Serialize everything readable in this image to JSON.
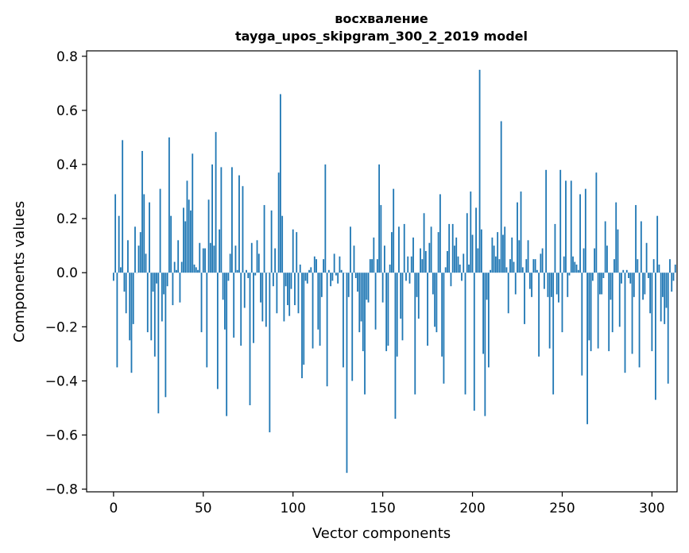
{
  "chart_data": {
    "type": "bar",
    "title_line1": "восхваление",
    "title_line2": "tayga_upos_skipgram_300_2_2019 model",
    "xlabel": "Vector components",
    "ylabel": "Components values",
    "xlim": [
      -15,
      314
    ],
    "ylim": [
      -0.81,
      0.82
    ],
    "xticks": [
      0,
      50,
      100,
      150,
      200,
      250,
      300
    ],
    "xtick_labels": [
      "0",
      "50",
      "100",
      "150",
      "200",
      "250",
      "300"
    ],
    "yticks": [
      -0.8,
      -0.6,
      -0.4,
      -0.2,
      0.0,
      0.2,
      0.4,
      0.6,
      0.8
    ],
    "ytick_labels": [
      "−0.8",
      "−0.6",
      "−0.4",
      "−0.2",
      "0.0",
      "0.2",
      "0.4",
      "0.6",
      "0.8"
    ],
    "color": "#1f77b4",
    "values": [
      -0.03,
      0.29,
      -0.35,
      0.21,
      0.02,
      0.49,
      -0.07,
      -0.15,
      0.12,
      -0.25,
      -0.37,
      -0.19,
      0.17,
      0.0,
      0.1,
      0.15,
      0.45,
      0.29,
      0.07,
      -0.22,
      0.26,
      -0.25,
      -0.07,
      -0.31,
      -0.04,
      -0.52,
      0.31,
      -0.18,
      -0.08,
      -0.46,
      -0.05,
      0.5,
      0.21,
      -0.12,
      0.04,
      0.01,
      0.12,
      -0.11,
      0.04,
      0.24,
      0.19,
      0.34,
      0.27,
      0.23,
      0.44,
      0.03,
      0.02,
      0.01,
      0.11,
      -0.22,
      0.09,
      0.09,
      -0.35,
      0.27,
      0.11,
      0.4,
      0.1,
      0.52,
      -0.43,
      0.16,
      0.39,
      -0.1,
      -0.21,
      -0.53,
      -0.03,
      0.07,
      0.39,
      -0.24,
      0.1,
      0.01,
      0.36,
      -0.27,
      0.32,
      -0.13,
      0.01,
      -0.02,
      -0.49,
      0.11,
      -0.26,
      -0.01,
      0.12,
      0.07,
      -0.11,
      -0.18,
      0.25,
      -0.2,
      0.0,
      -0.59,
      0.23,
      -0.05,
      0.09,
      -0.15,
      0.37,
      0.66,
      0.21,
      -0.18,
      -0.05,
      -0.12,
      -0.16,
      -0.06,
      0.16,
      -0.12,
      0.15,
      -0.15,
      0.03,
      -0.39,
      -0.34,
      -0.03,
      -0.04,
      0.01,
      0.02,
      -0.28,
      0.06,
      0.05,
      -0.21,
      -0.27,
      -0.09,
      0.05,
      0.4,
      -0.42,
      0.01,
      -0.05,
      -0.03,
      0.07,
      -0.01,
      -0.04,
      0.06,
      0.01,
      -0.35,
      0.0,
      -0.74,
      -0.09,
      0.17,
      -0.4,
      0.1,
      -0.02,
      -0.07,
      -0.22,
      -0.18,
      -0.29,
      -0.45,
      -0.1,
      -0.11,
      0.05,
      0.05,
      0.13,
      -0.21,
      0.05,
      0.4,
      0.25,
      -0.11,
      0.1,
      -0.29,
      -0.27,
      0.03,
      0.15,
      0.31,
      -0.54,
      -0.31,
      0.17,
      -0.17,
      -0.25,
      0.18,
      -0.03,
      0.06,
      -0.04,
      0.06,
      0.13,
      -0.45,
      -0.09,
      -0.17,
      0.09,
      0.05,
      0.22,
      0.08,
      -0.27,
      0.11,
      0.17,
      -0.08,
      -0.2,
      -0.22,
      0.15,
      0.29,
      -0.31,
      -0.41,
      0.02,
      0.08,
      0.18,
      -0.05,
      0.18,
      0.1,
      0.13,
      0.06,
      0.03,
      -0.03,
      0.07,
      -0.45,
      0.22,
      0.03,
      0.3,
      0.14,
      -0.51,
      0.24,
      0.09,
      0.75,
      0.16,
      -0.3,
      -0.53,
      -0.1,
      -0.35,
      0.01,
      0.13,
      0.1,
      0.06,
      0.15,
      0.05,
      0.56,
      0.14,
      0.17,
      0.02,
      -0.15,
      0.05,
      0.13,
      0.04,
      -0.08,
      0.26,
      0.12,
      0.3,
      0.02,
      -0.19,
      0.05,
      0.12,
      -0.06,
      -0.09,
      0.05,
      0.05,
      0.01,
      -0.31,
      0.07,
      0.09,
      -0.06,
      0.38,
      -0.09,
      -0.28,
      -0.09,
      -0.45,
      0.18,
      -0.08,
      -0.11,
      0.38,
      -0.22,
      0.06,
      0.34,
      -0.09,
      -0.01,
      0.34,
      0.06,
      0.04,
      0.03,
      0.01,
      0.29,
      -0.38,
      0.09,
      0.31,
      -0.56,
      -0.25,
      -0.29,
      -0.03,
      0.09,
      0.37,
      -0.28,
      -0.08,
      -0.08,
      -0.02,
      0.19,
      0.1,
      -0.29,
      -0.1,
      -0.22,
      0.05,
      0.26,
      0.16,
      -0.2,
      -0.04,
      0.01,
      -0.37,
      0.01,
      -0.02,
      -0.04,
      -0.3,
      -0.09,
      0.25,
      0.05,
      -0.35,
      0.19,
      -0.1,
      -0.08,
      0.11,
      -0.02,
      -0.15,
      -0.29,
      0.05,
      -0.47,
      0.21,
      0.03,
      -0.18,
      -0.09,
      -0.19,
      -0.13,
      -0.41,
      0.05,
      -0.07,
      -0.03,
      0.03
    ],
    "highlight_bar_heights_note": "values read off gridlines"
  }
}
